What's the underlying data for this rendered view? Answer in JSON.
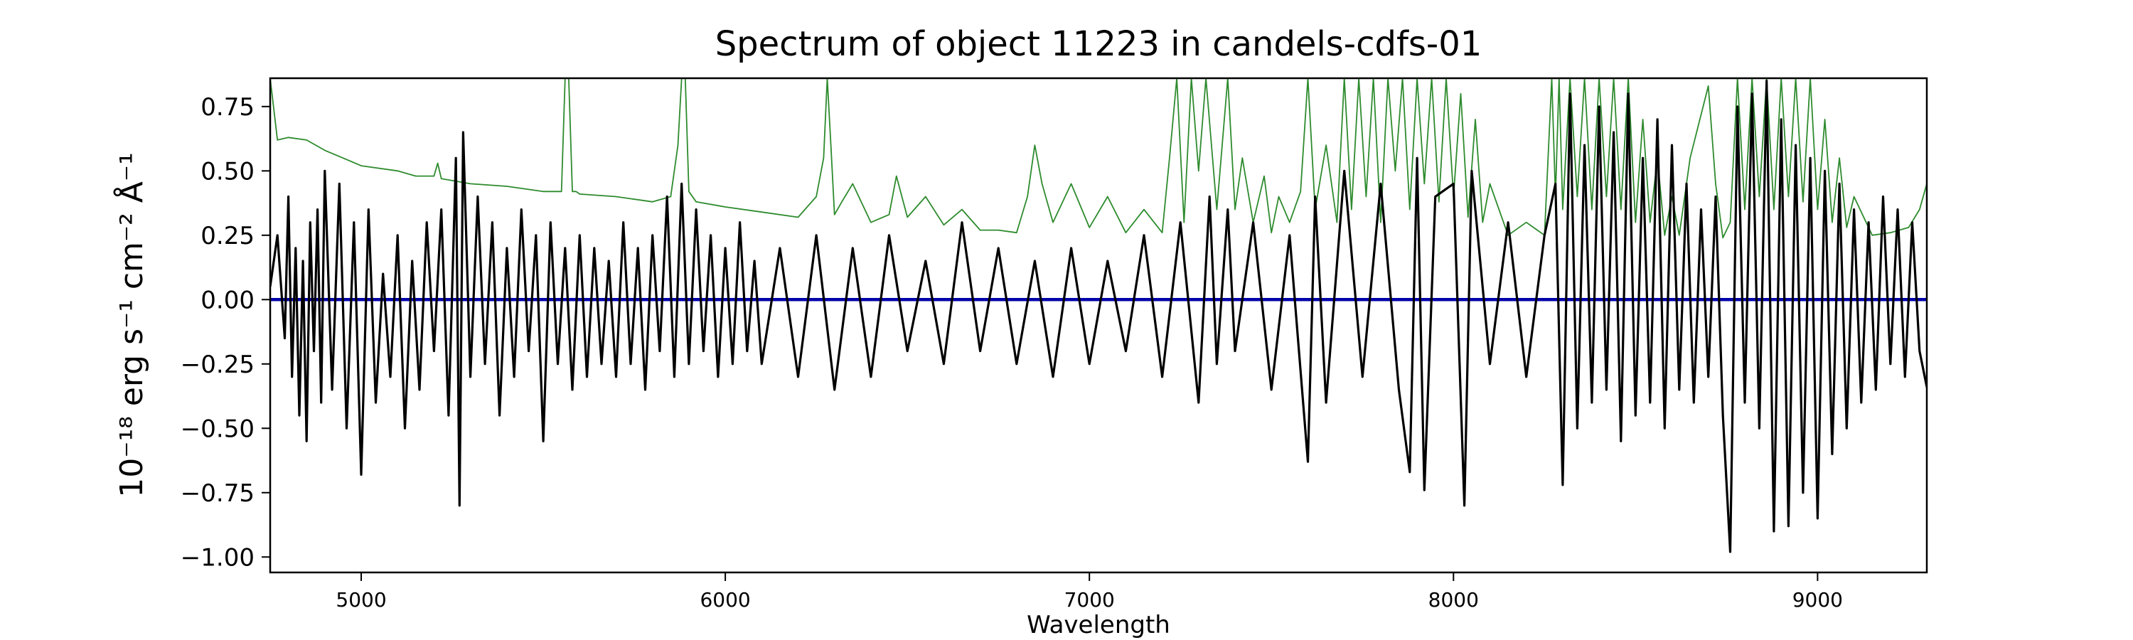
{
  "chart_data": {
    "type": "line",
    "title": "Spectrum of object 11223 in candels-cdfs-01",
    "xlabel": "Wavelength",
    "ylabel": "10⁻¹⁸ erg s⁻¹ cm⁻² Å⁻¹",
    "xlim": [
      4750,
      9300
    ],
    "ylim": [
      -1.06,
      0.86
    ],
    "x_ticks": [
      5000,
      6000,
      7000,
      8000,
      9000
    ],
    "y_ticks": [
      -1.0,
      -0.75,
      -0.5,
      -0.25,
      0.0,
      0.25,
      0.5,
      0.75
    ],
    "x_tick_labels": [
      "5000",
      "6000",
      "7000",
      "8000",
      "9000"
    ],
    "y_tick_labels": [
      "−1.00",
      "−0.75",
      "−0.50",
      "−0.25",
      "0.00",
      "0.25",
      "0.50",
      "0.75"
    ],
    "grid": false,
    "series": [
      {
        "role": "zero-line",
        "color": "#0000aa",
        "x": [
          4750,
          9300
        ],
        "y": [
          0.0,
          0.0
        ]
      },
      {
        "role": "error-spectrum",
        "color": "#2e8b2e",
        "x": [
          4750,
          4770,
          4800,
          4850,
          4900,
          4950,
          5000,
          5100,
          5150,
          5200,
          5210,
          5220,
          5300,
          5400,
          5500,
          5550,
          5560,
          5570,
          5580,
          5590,
          5600,
          5700,
          5800,
          5850,
          5870,
          5880,
          5890,
          5900,
          5920,
          6000,
          6100,
          6200,
          6250,
          6270,
          6280,
          6290,
          6300,
          6320,
          6350,
          6400,
          6450,
          6470,
          6500,
          6550,
          6600,
          6650,
          6700,
          6750,
          6800,
          6830,
          6850,
          6870,
          6900,
          6950,
          7000,
          7050,
          7100,
          7150,
          7200,
          7220,
          7240,
          7260,
          7280,
          7300,
          7320,
          7350,
          7380,
          7400,
          7420,
          7450,
          7480,
          7500,
          7520,
          7550,
          7580,
          7600,
          7620,
          7650,
          7680,
          7700,
          7720,
          7740,
          7760,
          7780,
          7800,
          7820,
          7840,
          7860,
          7880,
          7900,
          7920,
          7940,
          7960,
          7980,
          8000,
          8020,
          8040,
          8060,
          8080,
          8100,
          8150,
          8200,
          8250,
          8270,
          8280,
          8290,
          8300,
          8320,
          8340,
          8360,
          8380,
          8400,
          8420,
          8440,
          8460,
          8480,
          8500,
          8520,
          8540,
          8560,
          8580,
          8600,
          8620,
          8650,
          8700,
          8720,
          8740,
          8760,
          8780,
          8800,
          8820,
          8840,
          8860,
          8880,
          8900,
          8920,
          8940,
          8960,
          8980,
          9000,
          9020,
          9040,
          9060,
          9080,
          9100,
          9150,
          9200,
          9250,
          9280,
          9300
        ],
        "y": [
          0.86,
          0.62,
          0.63,
          0.62,
          0.58,
          0.55,
          0.52,
          0.5,
          0.48,
          0.48,
          0.53,
          0.47,
          0.45,
          0.44,
          0.42,
          0.42,
          0.86,
          0.86,
          0.42,
          0.42,
          0.41,
          0.4,
          0.38,
          0.4,
          0.6,
          0.86,
          0.86,
          0.42,
          0.38,
          0.36,
          0.34,
          0.32,
          0.4,
          0.55,
          0.86,
          0.6,
          0.33,
          0.38,
          0.45,
          0.3,
          0.33,
          0.48,
          0.32,
          0.4,
          0.29,
          0.35,
          0.27,
          0.27,
          0.26,
          0.4,
          0.6,
          0.45,
          0.3,
          0.45,
          0.28,
          0.4,
          0.26,
          0.35,
          0.26,
          0.55,
          0.86,
          0.3,
          0.86,
          0.5,
          0.86,
          0.35,
          0.86,
          0.35,
          0.55,
          0.3,
          0.48,
          0.26,
          0.4,
          0.3,
          0.42,
          0.86,
          0.35,
          0.6,
          0.3,
          0.86,
          0.35,
          0.86,
          0.4,
          0.86,
          0.3,
          0.86,
          0.5,
          0.86,
          0.35,
          0.86,
          0.45,
          0.86,
          0.38,
          0.86,
          0.4,
          0.8,
          0.32,
          0.7,
          0.3,
          0.45,
          0.25,
          0.3,
          0.25,
          0.86,
          0.4,
          0.86,
          0.35,
          0.86,
          0.4,
          0.86,
          0.35,
          0.86,
          0.4,
          0.86,
          0.35,
          0.86,
          0.3,
          0.7,
          0.3,
          0.55,
          0.25,
          0.4,
          0.25,
          0.55,
          0.83,
          0.45,
          0.24,
          0.3,
          0.86,
          0.35,
          0.86,
          0.4,
          0.86,
          0.35,
          0.86,
          0.4,
          0.86,
          0.38,
          0.86,
          0.35,
          0.7,
          0.3,
          0.55,
          0.28,
          0.4,
          0.25,
          0.26,
          0.28,
          0.35,
          0.45
        ]
      },
      {
        "role": "flux",
        "color": "#000000",
        "x": [
          4750,
          4770,
          4790,
          4800,
          4810,
          4820,
          4830,
          4840,
          4850,
          4860,
          4870,
          4880,
          4890,
          4900,
          4920,
          4940,
          4960,
          4980,
          5000,
          5020,
          5040,
          5060,
          5080,
          5100,
          5120,
          5140,
          5160,
          5180,
          5200,
          5220,
          5240,
          5260,
          5270,
          5280,
          5300,
          5320,
          5340,
          5360,
          5380,
          5400,
          5420,
          5440,
          5460,
          5480,
          5500,
          5520,
          5540,
          5560,
          5580,
          5600,
          5620,
          5640,
          5660,
          5680,
          5700,
          5720,
          5740,
          5760,
          5780,
          5800,
          5820,
          5840,
          5860,
          5880,
          5900,
          5920,
          5940,
          5960,
          5980,
          6000,
          6020,
          6040,
          6060,
          6080,
          6100,
          6150,
          6200,
          6250,
          6300,
          6350,
          6400,
          6450,
          6500,
          6550,
          6600,
          6650,
          6700,
          6750,
          6800,
          6850,
          6900,
          6950,
          7000,
          7050,
          7100,
          7150,
          7200,
          7250,
          7300,
          7330,
          7350,
          7380,
          7400,
          7450,
          7500,
          7550,
          7600,
          7620,
          7650,
          7700,
          7750,
          7800,
          7850,
          7880,
          7900,
          7920,
          7950,
          8000,
          8030,
          8050,
          8100,
          8150,
          8200,
          8250,
          8280,
          8300,
          8320,
          8340,
          8360,
          8380,
          8400,
          8420,
          8440,
          8460,
          8480,
          8500,
          8520,
          8540,
          8560,
          8580,
          8600,
          8620,
          8640,
          8660,
          8680,
          8700,
          8720,
          8740,
          8760,
          8780,
          8800,
          8820,
          8840,
          8860,
          8880,
          8900,
          8920,
          8940,
          8960,
          8980,
          9000,
          9020,
          9040,
          9060,
          9080,
          9100,
          9120,
          9140,
          9160,
          9180,
          9200,
          9220,
          9240,
          9260,
          9280,
          9300
        ],
        "y": [
          0.05,
          0.25,
          -0.15,
          0.4,
          -0.3,
          0.2,
          -0.45,
          0.15,
          -0.55,
          0.3,
          -0.2,
          0.35,
          -0.4,
          0.5,
          -0.35,
          0.45,
          -0.5,
          0.3,
          -0.68,
          0.35,
          -0.4,
          0.1,
          -0.3,
          0.25,
          -0.5,
          0.15,
          -0.35,
          0.3,
          -0.2,
          0.35,
          -0.45,
          0.55,
          -0.8,
          0.65,
          -0.3,
          0.4,
          -0.25,
          0.3,
          -0.45,
          0.2,
          -0.3,
          0.35,
          -0.2,
          0.25,
          -0.55,
          0.3,
          -0.25,
          0.2,
          -0.35,
          0.25,
          -0.3,
          0.2,
          -0.25,
          0.15,
          -0.3,
          0.3,
          -0.25,
          0.2,
          -0.35,
          0.25,
          -0.2,
          0.4,
          -0.3,
          0.45,
          -0.25,
          0.35,
          -0.2,
          0.25,
          -0.3,
          0.2,
          -0.25,
          0.3,
          -0.2,
          0.15,
          -0.25,
          0.2,
          -0.3,
          0.25,
          -0.35,
          0.2,
          -0.3,
          0.25,
          -0.2,
          0.15,
          -0.25,
          0.3,
          -0.2,
          0.2,
          -0.25,
          0.15,
          -0.3,
          0.2,
          -0.25,
          0.15,
          -0.2,
          0.25,
          -0.3,
          0.3,
          -0.4,
          0.4,
          -0.25,
          0.35,
          -0.2,
          0.3,
          -0.35,
          0.25,
          -0.63,
          0.4,
          -0.4,
          0.5,
          -0.3,
          0.45,
          -0.35,
          -0.67,
          0.55,
          -0.74,
          0.4,
          0.45,
          -0.8,
          0.5,
          -0.25,
          0.3,
          -0.3,
          0.25,
          0.45,
          -0.72,
          0.8,
          -0.5,
          0.6,
          -0.4,
          0.75,
          -0.35,
          0.65,
          -0.55,
          0.8,
          -0.45,
          0.55,
          -0.4,
          0.7,
          -0.5,
          0.6,
          -0.35,
          0.45,
          -0.4,
          0.35,
          -0.3,
          0.4,
          -0.45,
          -0.98,
          0.75,
          -0.4,
          0.8,
          -0.5,
          0.85,
          -0.9,
          0.7,
          -0.88,
          0.6,
          -0.75,
          0.55,
          -0.85,
          0.5,
          -0.6,
          0.45,
          -0.5,
          0.35,
          -0.4,
          0.3,
          -0.35,
          0.4,
          -0.25,
          0.35,
          -0.3,
          0.3,
          -0.2,
          -0.34
        ]
      }
    ]
  }
}
